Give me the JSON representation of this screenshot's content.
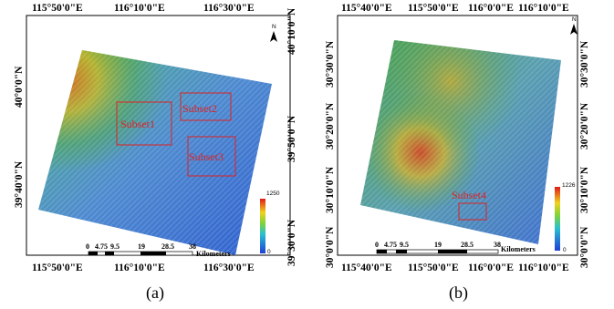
{
  "panel_a": {
    "caption": "(a)",
    "top_labels": [
      "115°50'0\"E",
      "116°10'0\"E",
      "116°30'0\"E"
    ],
    "bottom_labels": [
      "115°50'0\"E",
      "116°10'0\"E",
      "116°30'0\"E"
    ],
    "left_labels": [
      "40°0'0\"N",
      "39°40'0\"N"
    ],
    "right_labels": [
      "40°10'0\"N",
      "39°50'0\"N",
      "39°30'0\"N"
    ],
    "subsets": [
      "Subset1",
      "Subset2",
      "Subset3"
    ],
    "legend": {
      "max": "1250",
      "min": "0"
    },
    "scale": {
      "ticks": [
        "0",
        "4.75",
        "9.5",
        "19",
        "28.5",
        "38"
      ],
      "unit": "Kilometers"
    },
    "north": "N"
  },
  "panel_b": {
    "caption": "(b)",
    "top_labels": [
      "115°40'0\"E",
      "115°50'0\"E",
      "116°0'0\"E",
      "116°10'0\"E"
    ],
    "bottom_labels": [
      "115°40'0\"E",
      "115°50'0\"E",
      "116°0'0\"E",
      "116°10'0\"E"
    ],
    "left_labels": [
      "30°30'0\"N",
      "30°20'0\"N",
      "30°10'0\"N",
      "30°0'0\"N"
    ],
    "right_labels": [
      "30°30'0\"N",
      "30°20'0\"N",
      "30°10'0\"N",
      "30°0'0\"N"
    ],
    "subsets": [
      "Subset4"
    ],
    "legend": {
      "max": "1226",
      "min": "0"
    },
    "scale": {
      "ticks": [
        "0",
        "4.75",
        "9.5",
        "19",
        "28.5",
        "38"
      ],
      "unit": "Kilometers"
    },
    "north": "N"
  },
  "colors": {
    "low": "#2b5fd0",
    "mid": "#3aa6a0",
    "high": "#d23a1a"
  }
}
